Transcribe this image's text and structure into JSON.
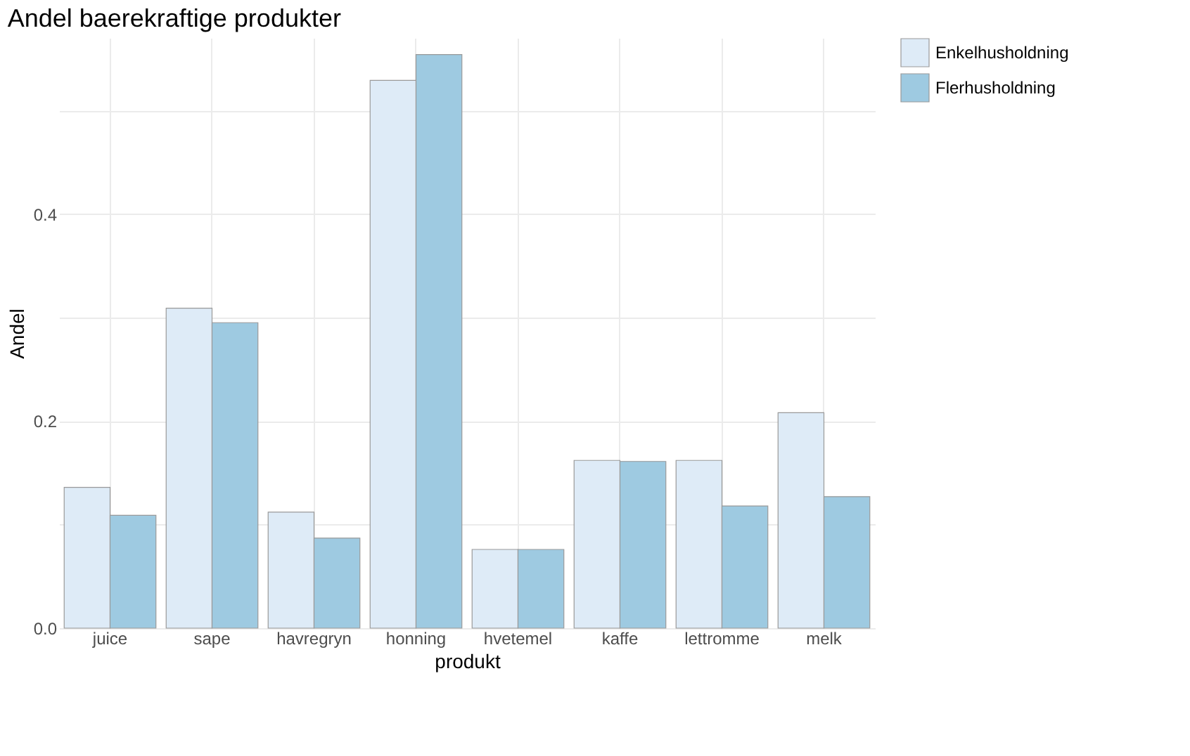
{
  "chart_data": {
    "type": "bar",
    "title": "Andel baerekraftige produkter",
    "xlabel": "produkt",
    "ylabel": "Andel",
    "categories": [
      "juice",
      "sape",
      "havregryn",
      "honning",
      "hvetemel",
      "kaffe",
      "lettromme",
      "melk"
    ],
    "series": [
      {
        "name": "Enkelhusholdning",
        "color": "#deebf7",
        "values": [
          0.136,
          0.309,
          0.112,
          0.529,
          0.076,
          0.162,
          0.162,
          0.208
        ]
      },
      {
        "name": "Flerhusholdning",
        "color": "#9ecae1",
        "values": [
          0.109,
          0.295,
          0.087,
          0.554,
          0.076,
          0.161,
          0.118,
          0.127
        ]
      }
    ],
    "ylim": [
      0,
      0.57
    ],
    "yticks": [
      {
        "value": 0,
        "label": "0.0"
      },
      {
        "value": 0.1,
        "label": null
      },
      {
        "value": 0.2,
        "label": "0.2"
      },
      {
        "value": 0.3,
        "label": null
      },
      {
        "value": 0.4,
        "label": "0.4"
      },
      {
        "value": 0.5,
        "label": null
      }
    ],
    "grid": true,
    "legend": "right"
  }
}
